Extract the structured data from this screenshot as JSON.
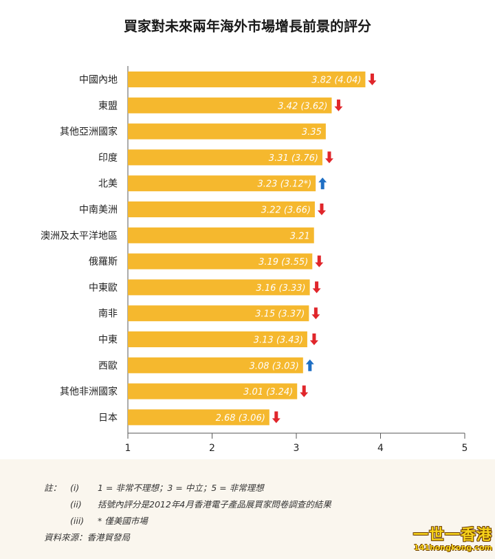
{
  "colors": {
    "bar": "#f5b82e",
    "down": "#e0262b",
    "up": "#1f6fc4",
    "axis": "#555555"
  },
  "chart_data": {
    "type": "bar",
    "orientation": "horizontal",
    "title": "買家對未來兩年海外市場增長前景的評分",
    "xlim": [
      1,
      5
    ],
    "xticks": [
      "1",
      "2",
      "3",
      "4",
      "5"
    ],
    "categories": [
      "中國內地",
      "東盟",
      "其他亞洲國家",
      "印度",
      "北美",
      "中南美洲",
      "澳洲及太平洋地區",
      "俄羅斯",
      "中東歐",
      "南非",
      "中東",
      "西歐",
      "其他非洲國家",
      "日本"
    ],
    "values": [
      3.82,
      3.42,
      3.35,
      3.31,
      3.23,
      3.22,
      3.21,
      3.19,
      3.16,
      3.15,
      3.13,
      3.08,
      3.01,
      2.68
    ],
    "data_labels": [
      "3.82 (4.04)",
      "3.42 (3.62)",
      "3.35",
      "3.31 (3.76)",
      "3.23 (3.12*)",
      "3.22 (3.66)",
      "3.21",
      "3.19 (3.55)",
      "3.16 (3.33)",
      "3.15 (3.37)",
      "3.13 (3.43)",
      "3.08 (3.03)",
      "3.01 (3.24)",
      "2.68 (3.06)"
    ],
    "trend": [
      "down",
      "down",
      "none",
      "down",
      "up",
      "down",
      "none",
      "down",
      "down",
      "down",
      "down",
      "up",
      "down",
      "down"
    ]
  },
  "notes": {
    "prefix": "註：",
    "items": [
      {
        "num": "(i)",
        "text": "1 = 非常不理想；3 = 中立；5 = 非常理想"
      },
      {
        "num": "(ii)",
        "text": "括號內評分是2012年4月香港電子產品展買家問卷調查的結果"
      },
      {
        "num": "(iii)",
        "text": "* 僅美國市場"
      }
    ],
    "source": "資料來源：香港貿發局"
  },
  "watermark": {
    "main": "一世一香港",
    "url": "141hongkong.com"
  }
}
